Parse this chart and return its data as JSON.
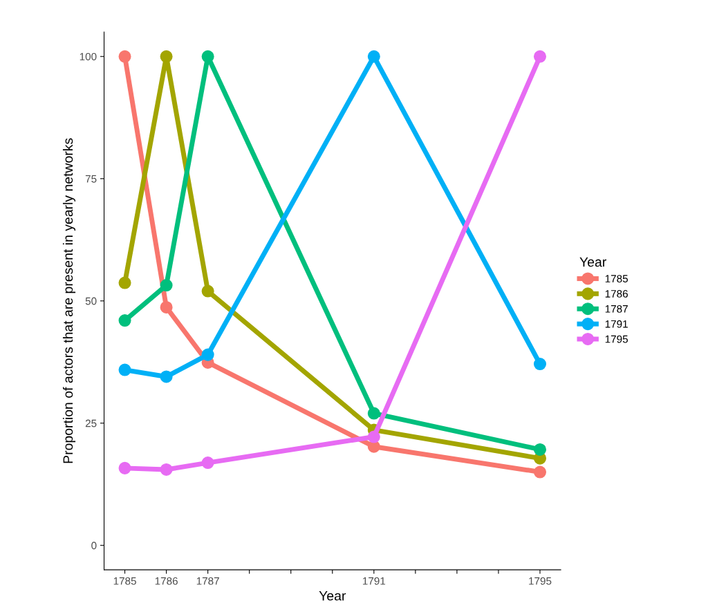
{
  "chart_data": {
    "type": "line",
    "xlabel": "Year",
    "ylabel": "Proportion of actors that are present in yearly networks",
    "legend_title": "Year",
    "x": [
      1785,
      1786,
      1787,
      1791,
      1795
    ],
    "series": [
      {
        "name": "1785",
        "color": "#f8766d",
        "values": [
          100,
          48.7,
          37.4,
          20.2,
          15.0
        ]
      },
      {
        "name": "1786",
        "color": "#a3a500",
        "values": [
          53.7,
          100,
          52.0,
          23.6,
          17.8
        ]
      },
      {
        "name": "1787",
        "color": "#00bf7d",
        "values": [
          46.0,
          53.2,
          100,
          27.0,
          19.6
        ]
      },
      {
        "name": "1791",
        "color": "#00b0f6",
        "values": [
          35.9,
          34.5,
          39.0,
          100,
          37.1
        ]
      },
      {
        "name": "1795",
        "color": "#e76bf3",
        "values": [
          15.8,
          15.5,
          16.9,
          22.2,
          100
        ]
      }
    ],
    "xlim": [
      1784.5,
      1795.5
    ],
    "ylim": [
      -5,
      105
    ],
    "xticks": [
      1785,
      1786,
      1787,
      {
        "value": 1788,
        "label": null
      },
      {
        "value": 1789,
        "label": null
      },
      {
        "value": 1790,
        "label": null
      },
      1791,
      {
        "value": 1792,
        "label": null
      },
      {
        "value": 1793,
        "label": null
      },
      {
        "value": 1794,
        "label": null
      },
      1795
    ],
    "yticks": [
      0,
      25,
      50,
      75,
      100
    ],
    "grid": false,
    "legend": "right",
    "marker": "circle",
    "line_style": "solid"
  }
}
